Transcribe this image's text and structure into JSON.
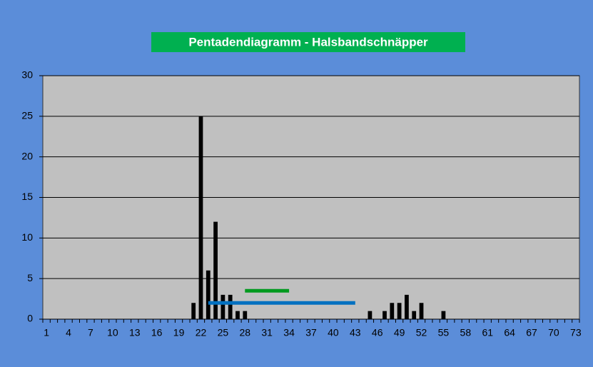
{
  "chart_data": {
    "type": "bar",
    "title": "Pentadendiagramm - Halsbandschnäpper",
    "categories": [
      1,
      null,
      null,
      4,
      null,
      null,
      7,
      null,
      null,
      10,
      null,
      null,
      13,
      null,
      null,
      16,
      null,
      null,
      19,
      null,
      null,
      22,
      null,
      null,
      25,
      null,
      null,
      28,
      null,
      null,
      31,
      null,
      null,
      34,
      null,
      null,
      37,
      null,
      null,
      40,
      null,
      null,
      43,
      null,
      null,
      46,
      null,
      null,
      49,
      null,
      null,
      52,
      null,
      null,
      55,
      null,
      null,
      58,
      null,
      null,
      61,
      null,
      null,
      64,
      null,
      null,
      67,
      null,
      null,
      70,
      null,
      null,
      73
    ],
    "values": [
      0,
      0,
      0,
      0,
      0,
      0,
      0,
      0,
      0,
      0,
      0,
      0,
      0,
      0,
      0,
      0,
      0,
      0,
      0,
      0,
      2,
      25,
      6,
      12,
      3,
      3,
      1,
      1,
      0,
      0,
      0,
      0,
      0,
      0,
      0,
      0,
      0,
      0,
      0,
      0,
      0,
      0,
      0,
      0,
      1,
      0,
      1,
      2,
      2,
      3,
      1,
      2,
      0,
      0,
      1,
      0,
      0,
      0,
      0,
      0,
      0,
      0,
      0,
      0,
      0,
      0,
      0,
      0,
      0,
      0,
      0,
      0,
      0
    ],
    "color": "#000000",
    "lines": [
      {
        "color": "#009a1e",
        "values": [
          null,
          null,
          null,
          null,
          null,
          null,
          null,
          null,
          null,
          null,
          null,
          null,
          null,
          null,
          null,
          null,
          null,
          null,
          null,
          null,
          null,
          null,
          null,
          null,
          null,
          null,
          null,
          3.5,
          3.5,
          3.5,
          3.5,
          3.5,
          3.5,
          3.5,
          null,
          null,
          null,
          null,
          null,
          null,
          null,
          null,
          null,
          null,
          null,
          null,
          null,
          null,
          null,
          null,
          null,
          null,
          null,
          null,
          null,
          null,
          null,
          null,
          null,
          null,
          null,
          null,
          null,
          null,
          null,
          null,
          null,
          null,
          null,
          null,
          null,
          null,
          null
        ]
      },
      {
        "color": "#0070c0",
        "values": [
          null,
          null,
          null,
          null,
          null,
          null,
          null,
          null,
          null,
          null,
          null,
          null,
          null,
          null,
          null,
          null,
          null,
          null,
          null,
          null,
          null,
          null,
          2,
          2,
          2,
          2,
          2,
          2,
          2,
          2,
          2,
          2,
          2,
          2,
          2,
          2,
          2,
          2,
          2,
          2,
          2,
          2,
          2,
          null,
          null,
          null,
          null,
          null,
          null,
          null,
          null,
          null,
          null,
          null,
          null,
          null,
          null,
          null,
          null,
          null,
          null,
          null,
          null,
          null,
          null,
          null,
          null,
          null,
          null,
          null,
          null,
          null,
          null
        ]
      }
    ],
    "ylim": [
      0,
      30
    ],
    "yticks": [
      0,
      5,
      10,
      15,
      20,
      25,
      30
    ],
    "grid": true
  }
}
